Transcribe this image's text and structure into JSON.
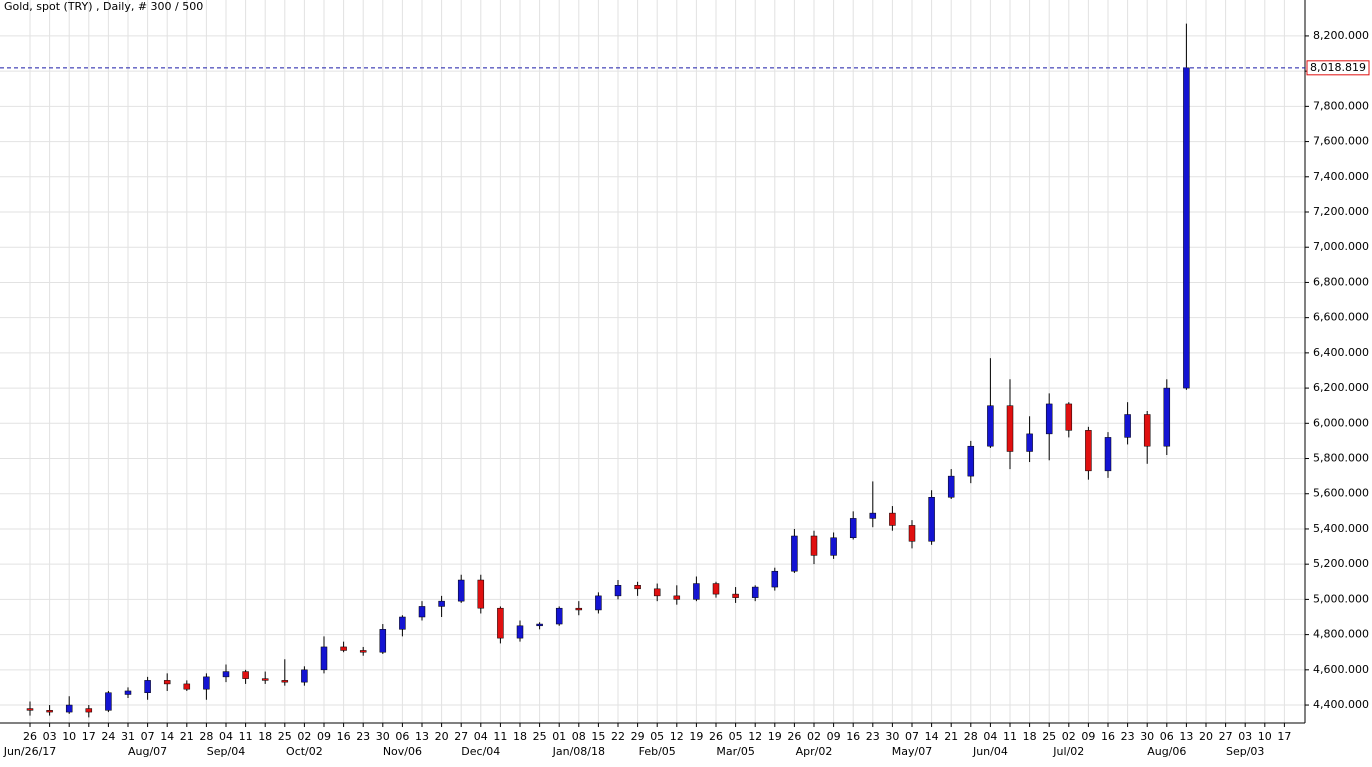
{
  "chart_data": {
    "type": "candlestick",
    "title": "Gold, spot (TRY) , Daily, # 300 / 500",
    "categories": [
      "26",
      "03",
      "10",
      "17",
      "24",
      "31",
      "07",
      "14",
      "21",
      "28",
      "04",
      "11",
      "18",
      "25",
      "02",
      "09",
      "16",
      "23",
      "30",
      "06",
      "13",
      "20",
      "27",
      "04",
      "11",
      "18",
      "25",
      "01",
      "08",
      "15",
      "22",
      "29",
      "05",
      "12",
      "19",
      "26",
      "05",
      "12",
      "19",
      "26",
      "02",
      "09",
      "16",
      "23",
      "30",
      "07",
      "14",
      "21",
      "28",
      "04",
      "11",
      "18",
      "25",
      "02",
      "09",
      "16",
      "23",
      "30",
      "06",
      "13",
      "20",
      "27",
      "03",
      "10",
      "17"
    ],
    "date_labels": [
      {
        "value": 0,
        "label": "Jun/26/17"
      },
      {
        "value": 6,
        "label": "Aug/07"
      },
      {
        "value": 10,
        "label": "Sep/04"
      },
      {
        "value": 14,
        "label": "Oct/02"
      },
      {
        "value": 19,
        "label": "Nov/06"
      },
      {
        "value": 23,
        "label": "Dec/04"
      },
      {
        "value": 28,
        "label": "Jan/08/18"
      },
      {
        "value": 32,
        "label": "Feb/05"
      },
      {
        "value": 36,
        "label": "Mar/05"
      },
      {
        "value": 40,
        "label": "Apr/02"
      },
      {
        "value": 45,
        "label": "May/07"
      },
      {
        "value": 49,
        "label": "Jun/04"
      },
      {
        "value": 53,
        "label": "Jul/02"
      },
      {
        "value": 58,
        "label": "Aug/06"
      },
      {
        "value": 62,
        "label": "Sep/03"
      }
    ],
    "open": [
      4380,
      4370,
      4360,
      4380,
      4370,
      4460,
      4470,
      4540,
      4520,
      4490,
      4560,
      4590,
      4550,
      4540,
      4530,
      4600,
      4730,
      4710,
      4700,
      4830,
      4900,
      4960,
      4990,
      5110,
      4950,
      4780,
      4850,
      4860,
      4950,
      4940,
      5020,
      5080,
      5060,
      5020,
      5000,
      5090,
      5030,
      5010,
      5070,
      5160,
      5360,
      5250,
      5350,
      5460,
      5490,
      5420,
      5330,
      5580,
      5700,
      5870,
      6100,
      5840,
      5940,
      6110,
      5960,
      5730,
      5920,
      6050,
      5870,
      6200,
      null,
      null,
      null,
      null,
      null
    ],
    "high": [
      4420,
      4400,
      4450,
      4400,
      4480,
      4500,
      4560,
      4580,
      4540,
      4580,
      4630,
      4600,
      4590,
      4660,
      4620,
      4790,
      4760,
      4730,
      4860,
      4910,
      4990,
      5020,
      5140,
      5140,
      4960,
      4880,
      4870,
      4960,
      4990,
      5040,
      5110,
      5100,
      5090,
      5080,
      5130,
      5100,
      5070,
      5080,
      5180,
      5400,
      5390,
      5380,
      5500,
      5670,
      5530,
      5450,
      5620,
      5740,
      5900,
      6370,
      6250,
      6040,
      6170,
      6120,
      5980,
      5950,
      6120,
      6070,
      6250,
      8270,
      null,
      null,
      null,
      null,
      null
    ],
    "low": [
      4340,
      4340,
      4350,
      4330,
      4360,
      4440,
      4430,
      4480,
      4480,
      4430,
      4530,
      4520,
      4520,
      4510,
      4510,
      4580,
      4700,
      4680,
      4690,
      4790,
      4880,
      4900,
      4980,
      4920,
      4750,
      4760,
      4830,
      4850,
      4910,
      4920,
      5000,
      5020,
      4990,
      4970,
      4990,
      5010,
      4980,
      4990,
      5050,
      5150,
      5200,
      5230,
      5340,
      5410,
      5390,
      5290,
      5310,
      5570,
      5660,
      5860,
      5740,
      5780,
      5790,
      5920,
      5680,
      5690,
      5880,
      5770,
      5820,
      6190,
      null,
      null,
      null,
      null,
      null
    ],
    "close": [
      4370,
      4360,
      4400,
      4360,
      4470,
      4480,
      4540,
      4520,
      4490,
      4560,
      4590,
      4550,
      4540,
      4530,
      4600,
      4730,
      4710,
      4700,
      4830,
      4900,
      4960,
      4990,
      5110,
      4950,
      4780,
      4850,
      4860,
      4950,
      4940,
      5020,
      5080,
      5060,
      5020,
      5000,
      5090,
      5030,
      5010,
      5070,
      5160,
      5360,
      5250,
      5350,
      5460,
      5490,
      5420,
      5330,
      5580,
      5700,
      5870,
      6100,
      5840,
      5940,
      6110,
      5960,
      5730,
      5920,
      6050,
      5870,
      6200,
      8018.819,
      null,
      null,
      null,
      null,
      null
    ],
    "up_color": "#1414d2",
    "down_color": "#e01010",
    "last_price": {
      "value": 8018.819,
      "label": "8,018.819"
    },
    "ylim": [
      4298,
      8404
    ],
    "yticks": [
      {
        "value": 4400,
        "label": "4,400.000"
      },
      {
        "value": 4600,
        "label": "4,600.000"
      },
      {
        "value": 4800,
        "label": "4,800.000"
      },
      {
        "value": 5000,
        "label": "5,000.000"
      },
      {
        "value": 5200,
        "label": "5,200.000"
      },
      {
        "value": 5400,
        "label": "5,400.000"
      },
      {
        "value": 5600,
        "label": "5,600.000"
      },
      {
        "value": 5800,
        "label": "5,800.000"
      },
      {
        "value": 6000,
        "label": "6,000.000"
      },
      {
        "value": 6200,
        "label": "6,200.000"
      },
      {
        "value": 6400,
        "label": "6,400.000"
      },
      {
        "value": 6600,
        "label": "6,600.000"
      },
      {
        "value": 6800,
        "label": "6,800.000"
      },
      {
        "value": 7000,
        "label": "7,000.000"
      },
      {
        "value": 7200,
        "label": "7,200.000"
      },
      {
        "value": 7400,
        "label": "7,400.000"
      },
      {
        "value": 7600,
        "label": "7,600.000"
      },
      {
        "value": 7800,
        "label": "7,800.000"
      },
      {
        "value": 8000,
        "label": "8,000.000"
      },
      {
        "value": 8200,
        "label": "8,200.000"
      }
    ],
    "grid": true
  }
}
